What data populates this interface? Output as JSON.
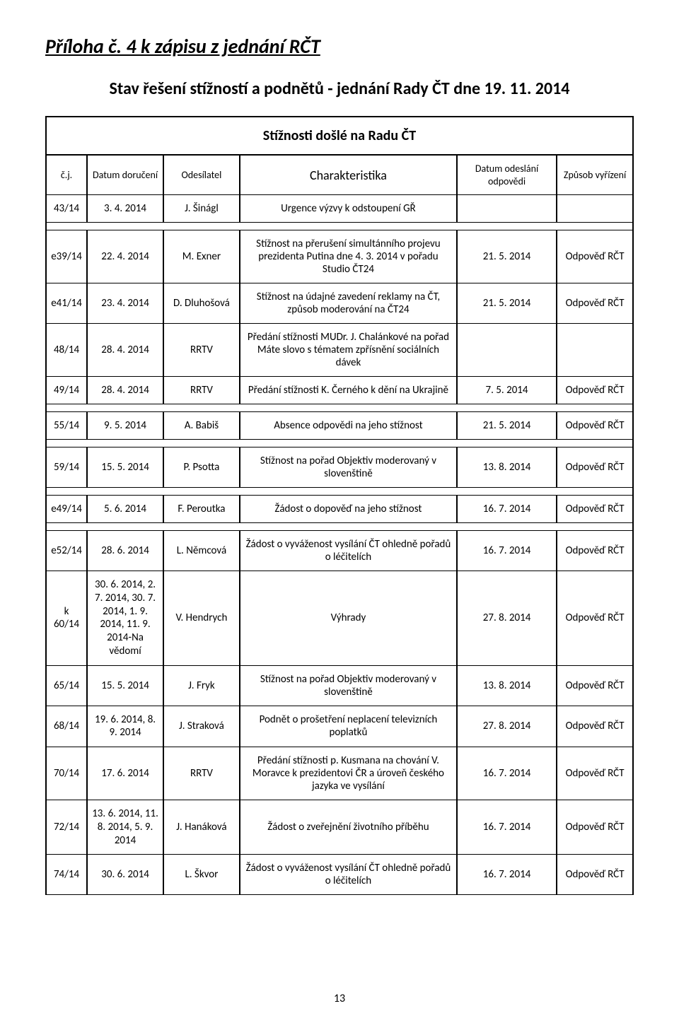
{
  "title": "Příloha č. 4 k zápisu z jednání RČT",
  "subtitle": "Stav řešení stížností a podnětů - jednání Rady ČT dne 19. 11. 2014",
  "section_title": "Stížnosti došlé na Radu ČT",
  "headers": {
    "cj": "č.j.",
    "doruceni": "Datum doručení",
    "odesilatel": "Odesílatel",
    "charakteristika": "Charakteristika",
    "odeslani": "Datum odeslání odpovědi",
    "zpusob": "Způsob vyřízení"
  },
  "row_intro": {
    "cj": "43/14",
    "doruceni": "3. 4. 2014",
    "odesilatel": "J. Šinágl",
    "charakteristika": "Urgence výzvy k odstoupení GŘ",
    "odeslani": "",
    "zpusob": ""
  },
  "group1": [
    {
      "cj": "e39/14",
      "doruceni": "22. 4. 2014",
      "odesilatel": "M. Exner",
      "charakteristika": "Stížnost na přerušení simultánního projevu prezidenta Putina dne 4. 3. 2014 v pořadu Studio ČT24",
      "odeslani": "21. 5. 2014",
      "zpusob": "Odpověď RČT"
    },
    {
      "cj": "e41/14",
      "doruceni": "23. 4. 2014",
      "odesilatel": "D. Dluhošová",
      "charakteristika": "Stížnost na údajné zavedení reklamy na ČT, způsob moderování na ČT24",
      "odeslani": "21. 5. 2014",
      "zpusob": "Odpověď RČT"
    },
    {
      "cj": "48/14",
      "doruceni": "28. 4. 2014",
      "odesilatel": "RRTV",
      "charakteristika": "Předání stížnosti MUDr. J. Chalánkové na pořad Máte slovo s tématem zpřísnění sociálních dávek",
      "odeslani": "",
      "zpusob": ""
    },
    {
      "cj": "49/14",
      "doruceni": "28. 4. 2014",
      "odesilatel": "RRTV",
      "charakteristika": "Předání stížnosti K. Černého k dění na Ukrajině",
      "odeslani": "7. 5. 2014",
      "zpusob": "Odpověď RČT"
    }
  ],
  "row55": {
    "cj": "55/14",
    "doruceni": "9. 5. 2014",
    "odesilatel": "A. Babiš",
    "charakteristika": "Absence odpovědi na jeho stížnost",
    "odeslani": "21. 5. 2014",
    "zpusob": "Odpověď RČT"
  },
  "row59": {
    "cj": "59/14",
    "doruceni": "15. 5. 2014",
    "odesilatel": "P. Psotta",
    "charakteristika": "Stížnost na pořad Objektiv moderovaný v slovenštině",
    "odeslani": "13. 8. 2014",
    "zpusob": "Odpověď RČT"
  },
  "row_e49": {
    "cj": "e49/14",
    "doruceni": "5. 6. 2014",
    "odesilatel": "F. Peroutka",
    "charakteristika": "Žádost o dopověď na jeho stížnost",
    "odeslani": "16. 7. 2014",
    "zpusob": "Odpověď RČT"
  },
  "group2": [
    {
      "cj": "e52/14",
      "doruceni": "28. 6. 2014",
      "odesilatel": "L. Němcová",
      "charakteristika": "Žádost o vyváženost vysílání ČT ohledně pořadů o léčitelích",
      "odeslani": "16. 7. 2014",
      "zpusob": "Odpověď RČT"
    },
    {
      "cj": "k 60/14",
      "doruceni": "30. 6. 2014, 2. 7. 2014, 30. 7. 2014, 1. 9. 2014, 11. 9. 2014-Na vědomí",
      "odesilatel": "V. Hendrych",
      "charakteristika": "Výhrady",
      "odeslani": "27. 8. 2014",
      "zpusob": "Odpověď RČT"
    },
    {
      "cj": "65/14",
      "doruceni": "15. 5. 2014",
      "odesilatel": "J. Fryk",
      "charakteristika": "Stížnost na pořad Objektiv moderovaný v slovenštině",
      "odeslani": "13. 8. 2014",
      "zpusob": "Odpověď RČT"
    },
    {
      "cj": "68/14",
      "doruceni": "19. 6. 2014, 8. 9. 2014",
      "odesilatel": "J. Straková",
      "charakteristika": "Podnět o prošetření neplacení televizních poplatků",
      "odeslani": "27. 8. 2014",
      "zpusob": "Odpověď RČT"
    },
    {
      "cj": "70/14",
      "doruceni": "17. 6. 2014",
      "odesilatel": "RRTV",
      "charakteristika": "Předání stížnosti p. Kusmana na chování V. Moravce k prezidentovi ČR a úroveň českého jazyka ve vysílání",
      "odeslani": "16. 7. 2014",
      "zpusob": "Odpověď RČT"
    },
    {
      "cj": "72/14",
      "doruceni": "13. 6. 2014, 11. 8. 2014, 5. 9. 2014",
      "odesilatel": "J. Hanáková",
      "charakteristika": "Žádost o zveřejnění životního příběhu",
      "odeslani": "16. 7. 2014",
      "zpusob": "Odpověď RČT"
    },
    {
      "cj": "74/14",
      "doruceni": "30. 6. 2014",
      "odesilatel": "L. Škvor",
      "charakteristika": "Žádost o vyváženost vysílání ČT ohledně pořadů o léčitelích",
      "odeslani": "16. 7. 2014",
      "zpusob": "Odpověď RČT"
    }
  ],
  "page_number": "13"
}
